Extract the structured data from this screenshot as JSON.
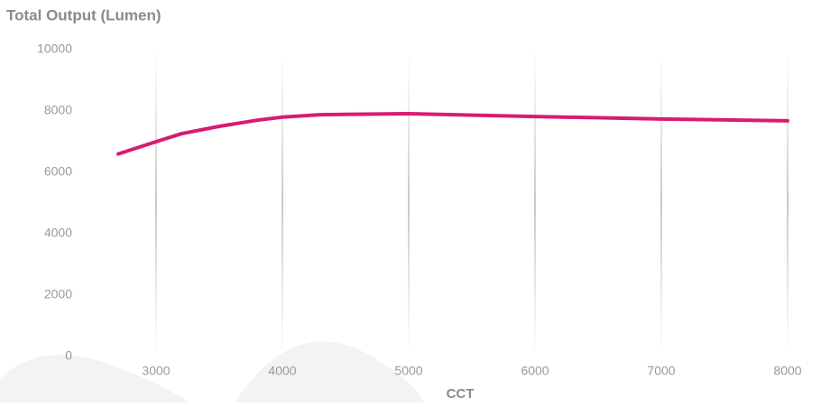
{
  "chart_data": {
    "type": "line",
    "title": "Total Output (Lumen)",
    "x_label": "CCT",
    "x": [
      2700,
      3000,
      3200,
      3500,
      3800,
      4000,
      4300,
      5000,
      6000,
      7000,
      8000
    ],
    "series": [
      {
        "color": "#d81b72",
        "values": [
          6600,
          7000,
          7260,
          7500,
          7700,
          7800,
          7880,
          7910,
          7820,
          7740,
          7680
        ]
      }
    ],
    "xlim": [
      2400,
      8200
    ],
    "xticks": [
      3000,
      4000,
      5000,
      6000,
      7000,
      8000
    ],
    "ylim": [
      0,
      10000
    ],
    "yticks": [
      0,
      2000,
      4000,
      6000,
      8000,
      10000
    ],
    "grid": true
  }
}
